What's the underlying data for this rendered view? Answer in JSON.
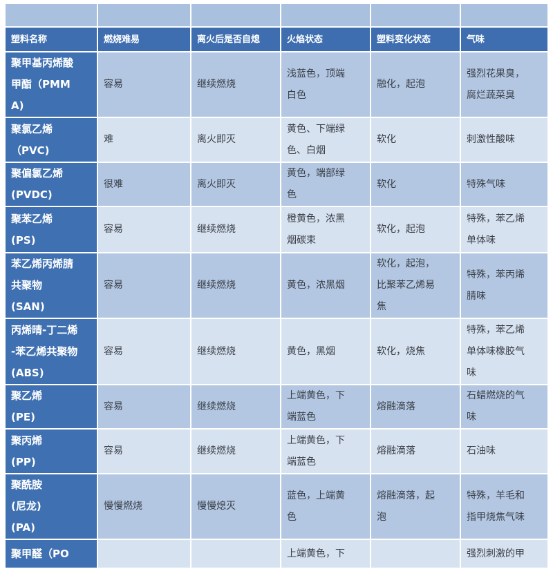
{
  "colors": {
    "header": "#3e6eb0",
    "name_column": "#3f70b1",
    "row_dark": "#b3c7e2",
    "row_light": "#d7e2f0",
    "top_row": "#a9c1de"
  },
  "table": {
    "headers": [
      "塑料名称",
      "燃烧难易",
      "离火后是否自熄",
      "火焰状态",
      "塑料变化状态",
      "气味"
    ],
    "rows": [
      [
        "聚甲基丙烯酸\n甲酯（PMM\nA)",
        "容易",
        "继续燃烧",
        "浅蓝色，顶端\n白色",
        "融化，起泡",
        "强烈花果臭，\n腐烂蔬菜臭"
      ],
      [
        "聚氯乙烯\n（PVC)",
        "难",
        "离火即灭",
        "黄色、下端绿\n色、白烟",
        "软化",
        "刺激性酸味"
      ],
      [
        "聚偏氯乙烯\n(PVDC)",
        "很难",
        "离火即灭",
        "黄色，端部绿\n色",
        "软化",
        "特殊气味"
      ],
      [
        "聚苯乙烯\n(PS)",
        "容易",
        "继续燃烧",
        "橙黄色，浓黑\n烟碳束",
        "软化，起泡",
        "特殊，苯乙烯\n单体味"
      ],
      [
        "苯乙烯丙烯腈\n共聚物\n(SAN)",
        "容易",
        "继续燃烧",
        "黄色，浓黑烟",
        "软化，起泡，\n比聚苯乙烯易\n焦",
        "特殊，苯丙烯\n腈味"
      ],
      [
        "丙烯晴-丁二烯\n-苯乙烯共聚物\n(ABS)",
        "容易",
        "继续燃烧",
        "黄色，黑烟",
        "软化，烧焦",
        "特殊，苯乙烯\n单体味橡胶气\n味"
      ],
      [
        "聚乙烯\n(PE)",
        "容易",
        "继续燃烧",
        "上端黄色，下\n端蓝色",
        "熔融滴落",
        "石蜡燃烧的气\n味"
      ],
      [
        "聚丙烯\n(PP)",
        "容易",
        "继续燃烧",
        "上端黄色，下\n端蓝色",
        "熔融滴落",
        "石油味"
      ],
      [
        "聚酰胺\n(尼龙)\n(PA)",
        "慢慢燃烧",
        "慢慢熄灭",
        "蓝色，上端黄\n色",
        "熔融滴落，起\n泡",
        "特殊，羊毛和\n指甲烧焦气味"
      ],
      [
        "聚甲醛（PO",
        "",
        "",
        "上端黄色，下",
        "",
        "强烈刺激的甲"
      ]
    ]
  }
}
